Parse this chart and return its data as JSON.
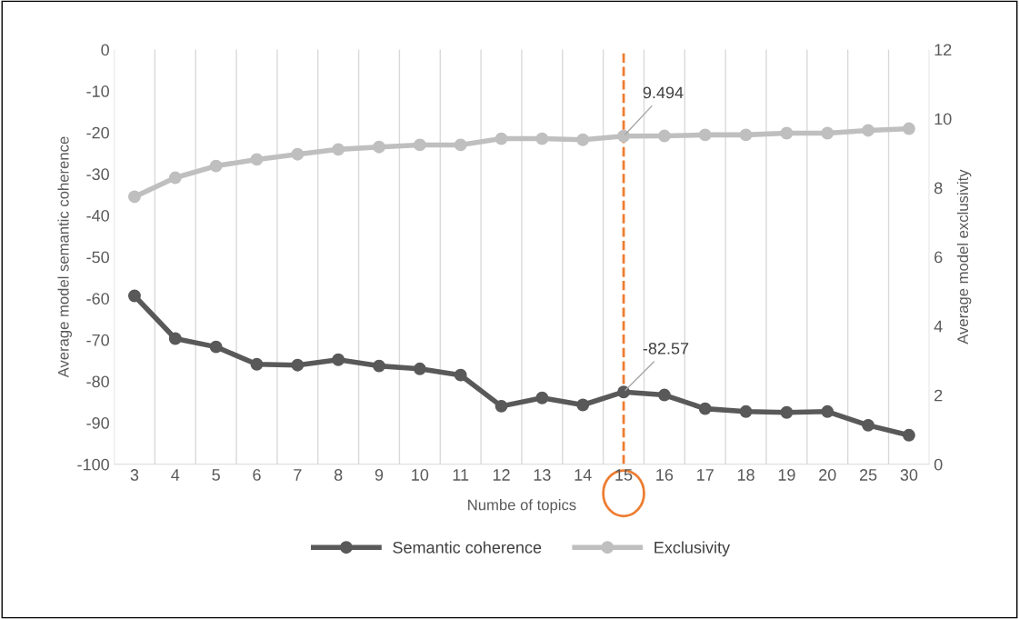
{
  "chart_data": {
    "type": "line",
    "xlabel": "Numbe of topics",
    "ylabel": "Average model semantic coherence",
    "y2label": "Average model exclusivity",
    "categories": [
      "3",
      "4",
      "5",
      "6",
      "7",
      "8",
      "9",
      "10",
      "11",
      "12",
      "13",
      "14",
      "15",
      "16",
      "17",
      "18",
      "19",
      "20",
      "25",
      "30"
    ],
    "series": [
      {
        "name": "Semantic coherence",
        "color": "#595959",
        "values": [
          -59.4,
          -69.7,
          -71.7,
          -75.9,
          -76.1,
          -74.8,
          -76.3,
          -77.0,
          -78.5,
          -86.0,
          -84.0,
          -85.7,
          -82.57,
          -83.3,
          -86.6,
          -87.3,
          -87.5,
          -87.3,
          -90.6,
          -93.0
        ],
        "value_labels": [
          null,
          null,
          null,
          null,
          null,
          null,
          null,
          null,
          null,
          null,
          null,
          null,
          "-82.57",
          null,
          null,
          null,
          null,
          null,
          null,
          null
        ]
      },
      {
        "name": "Exclusivity",
        "color": "#bfbfbf",
        "axis": "y2",
        "values": [
          7.74,
          8.29,
          8.63,
          8.82,
          8.97,
          9.11,
          9.18,
          9.24,
          9.24,
          9.42,
          9.42,
          9.39,
          9.494,
          9.5,
          9.53,
          9.53,
          9.58,
          9.58,
          9.66,
          9.71
        ],
        "value_labels": [
          null,
          null,
          null,
          null,
          null,
          null,
          null,
          null,
          null,
          null,
          null,
          null,
          "9.494",
          null,
          null,
          null,
          null,
          null,
          null,
          null
        ]
      }
    ],
    "ylim": [
      -100,
      0
    ],
    "yticks": [
      -100,
      -90,
      -80,
      -70,
      -60,
      -50,
      -40,
      -30,
      -20,
      -10,
      0
    ],
    "y2lim": [
      0,
      12
    ],
    "y2ticks": [
      0,
      2,
      4,
      6,
      8,
      10,
      12
    ],
    "ref_lines": [
      {
        "axis": "x",
        "value": "15",
        "color": "#ed7d31",
        "line_style": "dashed"
      }
    ],
    "grid": "x",
    "legend": "bottom",
    "marker": "circle",
    "line_style": "solid"
  }
}
